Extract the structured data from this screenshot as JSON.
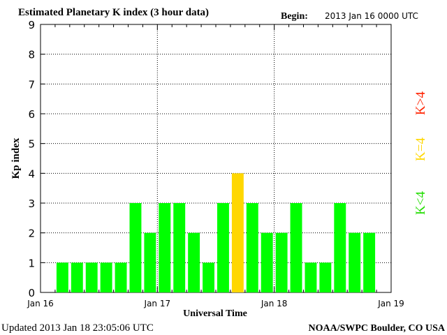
{
  "header": {
    "title": "Estimated Planetary K index (3 hour data)",
    "begin_label": "Begin:",
    "begin_value": "2013 Jan 16 0000 UTC"
  },
  "footer": {
    "updated": "Updated 2013 Jan 18 23:05:06 UTC",
    "credit": "NOAA/SWPC Boulder, CO USA"
  },
  "legend": {
    "above": "K>4",
    "equal": "K=4",
    "below": "K<4"
  },
  "chart_data": {
    "type": "bar",
    "title": "Estimated Planetary K index (3 hour data)",
    "xlabel": "Universal Time",
    "ylabel": "Kp index",
    "ylim": [
      0,
      9
    ],
    "yticks": [
      "0",
      "1",
      "2",
      "3",
      "4",
      "5",
      "6",
      "7",
      "8",
      "9"
    ],
    "xlim_days": [
      0,
      3
    ],
    "xticks": [
      {
        "label": "Jan 16",
        "day": 0
      },
      {
        "label": "Jan 17",
        "day": 1
      },
      {
        "label": "Jan 18",
        "day": 2
      },
      {
        "label": "Jan 19",
        "day": 3
      }
    ],
    "grid": "dotted",
    "bar_interval_hours": 3,
    "values": [
      1,
      1,
      1,
      1,
      1,
      3,
      2,
      3,
      3,
      2,
      1,
      3,
      4,
      3,
      2,
      2,
      3,
      1,
      1,
      3,
      2,
      2
    ],
    "colors": {
      "below": "#00ff00",
      "equal": "#ffd700",
      "above": "#ff2200"
    }
  }
}
